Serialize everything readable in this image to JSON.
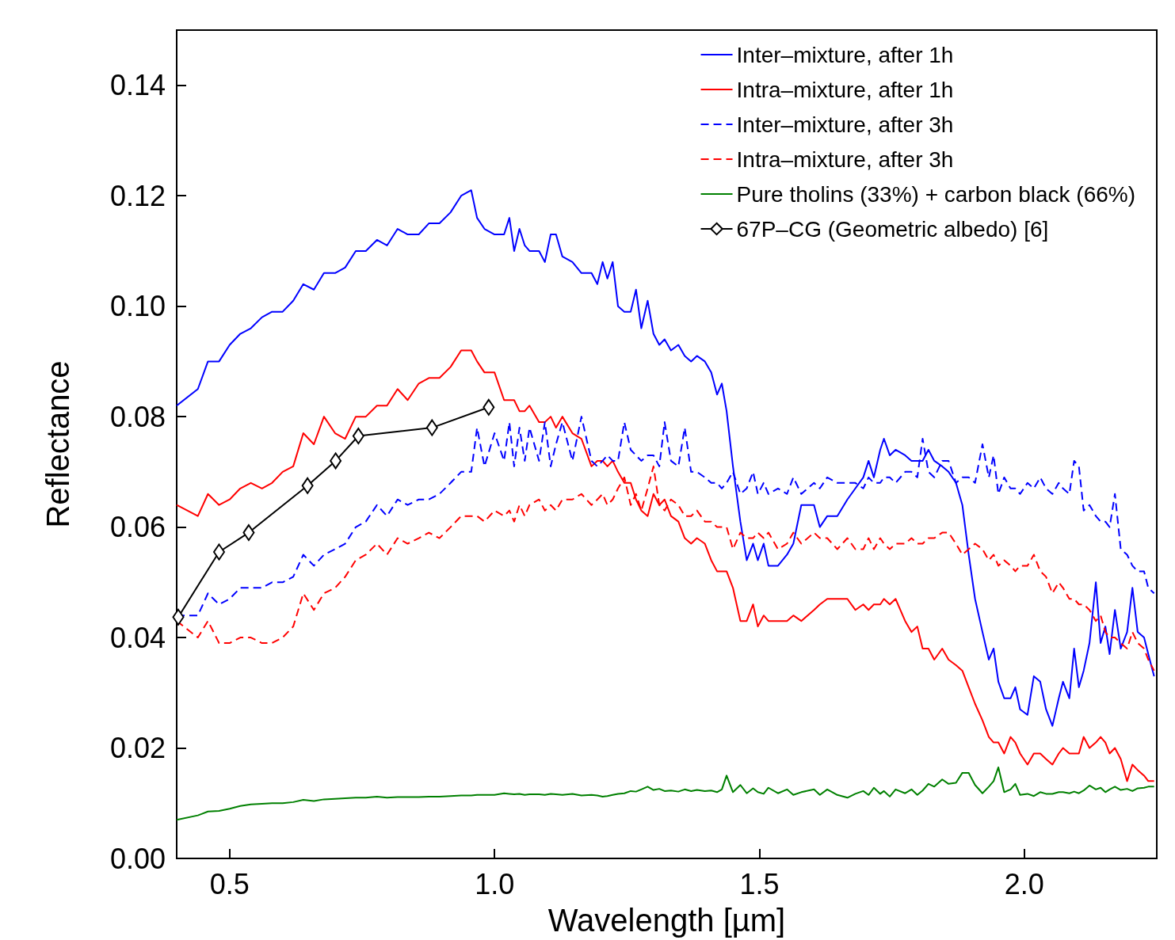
{
  "chart_data": {
    "type": "line",
    "xlabel": "Wavelength [µm]",
    "ylabel": "Reflectance",
    "x": [
      0.4,
      0.44,
      0.459,
      0.48,
      0.5,
      0.52,
      0.54,
      0.561,
      0.58,
      0.6,
      0.62,
      0.639,
      0.659,
      0.678,
      0.699,
      0.718,
      0.738,
      0.757,
      0.778,
      0.797,
      0.817,
      0.836,
      0.857,
      0.876,
      0.896,
      0.917,
      0.937,
      0.956,
      0.967,
      0.981,
      1.0,
      1.018,
      1.028,
      1.037,
      1.047,
      1.057,
      1.066,
      1.084,
      1.095,
      1.106,
      1.116,
      1.128,
      1.147,
      1.164,
      1.183,
      1.194,
      1.204,
      1.213,
      1.223,
      1.233,
      1.245,
      1.257,
      1.267,
      1.277,
      1.289,
      1.3,
      1.311,
      1.321,
      1.333,
      1.347,
      1.359,
      1.371,
      1.382,
      1.397,
      1.409,
      1.42,
      1.429,
      1.438,
      1.45,
      1.464,
      1.476,
      1.488,
      1.497,
      1.508,
      1.517,
      1.535,
      1.552,
      1.564,
      1.579,
      1.603,
      1.614,
      1.628,
      1.647,
      1.666,
      1.681,
      1.696,
      1.706,
      1.716,
      1.728,
      1.735,
      1.746,
      1.757,
      1.775,
      1.787,
      1.798,
      1.808,
      1.819,
      1.83,
      1.845,
      1.857,
      1.871,
      1.883,
      1.895,
      1.907,
      1.921,
      1.933,
      1.942,
      1.951,
      1.962,
      1.974,
      1.983,
      1.992,
      2.006,
      2.018,
      2.03,
      2.041,
      2.053,
      2.065,
      2.073,
      2.085,
      2.094,
      2.103,
      2.112,
      2.123,
      2.135,
      2.144,
      2.153,
      2.161,
      2.171,
      2.182,
      2.194,
      2.204,
      2.214,
      2.226,
      2.234,
      2.245
    ],
    "series": [
      {
        "name": "Inter–mixture, after 1h",
        "color": "#0000ff",
        "line_style": "solid",
        "marker": "none",
        "values": [
          0.082,
          0.085,
          0.09,
          0.09,
          0.093,
          0.095,
          0.096,
          0.098,
          0.099,
          0.099,
          0.101,
          0.104,
          0.103,
          0.106,
          0.106,
          0.107,
          0.11,
          0.11,
          0.112,
          0.111,
          0.114,
          0.113,
          0.113,
          0.115,
          0.115,
          0.117,
          0.12,
          0.121,
          0.116,
          0.114,
          0.113,
          0.113,
          0.116,
          0.11,
          0.114,
          0.111,
          0.11,
          0.11,
          0.108,
          0.113,
          0.113,
          0.109,
          0.108,
          0.106,
          0.106,
          0.104,
          0.108,
          0.105,
          0.108,
          0.1,
          0.099,
          0.099,
          0.103,
          0.096,
          0.101,
          0.095,
          0.093,
          0.094,
          0.092,
          0.093,
          0.091,
          0.09,
          0.091,
          0.09,
          0.088,
          0.084,
          0.086,
          0.081,
          0.071,
          0.061,
          0.054,
          0.057,
          0.054,
          0.057,
          0.053,
          0.053,
          0.055,
          0.057,
          0.064,
          0.064,
          0.06,
          0.062,
          0.062,
          0.065,
          0.067,
          0.069,
          0.072,
          0.069,
          0.074,
          0.076,
          0.073,
          0.074,
          0.073,
          0.072,
          0.072,
          0.072,
          0.074,
          0.072,
          0.071,
          0.07,
          0.068,
          0.064,
          0.055,
          0.047,
          0.041,
          0.036,
          0.038,
          0.032,
          0.029,
          0.029,
          0.031,
          0.027,
          0.026,
          0.033,
          0.032,
          0.027,
          0.024,
          0.029,
          0.032,
          0.029,
          0.038,
          0.031,
          0.034,
          0.039,
          0.05,
          0.039,
          0.042,
          0.037,
          0.045,
          0.038,
          0.041,
          0.049,
          0.041,
          0.04,
          0.037,
          0.033
        ]
      },
      {
        "name": "Intra–mixture, after 1h",
        "color": "#ff0000",
        "line_style": "solid",
        "marker": "none",
        "values": [
          0.064,
          0.062,
          0.066,
          0.064,
          0.065,
          0.067,
          0.068,
          0.067,
          0.068,
          0.07,
          0.071,
          0.077,
          0.075,
          0.08,
          0.077,
          0.076,
          0.08,
          0.08,
          0.082,
          0.082,
          0.085,
          0.083,
          0.086,
          0.087,
          0.087,
          0.089,
          0.092,
          0.092,
          0.09,
          0.088,
          0.088,
          0.083,
          0.083,
          0.083,
          0.081,
          0.081,
          0.082,
          0.079,
          0.079,
          0.08,
          0.078,
          0.08,
          0.077,
          0.076,
          0.071,
          0.072,
          0.072,
          0.071,
          0.072,
          0.07,
          0.068,
          0.068,
          0.065,
          0.063,
          0.062,
          0.066,
          0.064,
          0.065,
          0.062,
          0.061,
          0.058,
          0.057,
          0.058,
          0.057,
          0.054,
          0.052,
          0.052,
          0.052,
          0.049,
          0.043,
          0.043,
          0.046,
          0.042,
          0.044,
          0.043,
          0.043,
          0.043,
          0.044,
          0.043,
          0.045,
          0.046,
          0.047,
          0.047,
          0.047,
          0.045,
          0.046,
          0.045,
          0.046,
          0.046,
          0.047,
          0.046,
          0.047,
          0.043,
          0.041,
          0.042,
          0.038,
          0.038,
          0.036,
          0.038,
          0.036,
          0.035,
          0.034,
          0.031,
          0.028,
          0.025,
          0.022,
          0.021,
          0.021,
          0.019,
          0.022,
          0.021,
          0.019,
          0.017,
          0.019,
          0.019,
          0.018,
          0.017,
          0.019,
          0.02,
          0.019,
          0.019,
          0.019,
          0.022,
          0.02,
          0.021,
          0.022,
          0.021,
          0.019,
          0.02,
          0.018,
          0.014,
          0.017,
          0.016,
          0.015,
          0.014,
          0.014
        ]
      },
      {
        "name": "Inter–mixture, after 3h",
        "color": "#0000ff",
        "line_style": "dashed",
        "marker": "none",
        "values": [
          0.044,
          0.044,
          0.048,
          0.046,
          0.047,
          0.049,
          0.049,
          0.049,
          0.05,
          0.05,
          0.051,
          0.055,
          0.053,
          0.055,
          0.056,
          0.057,
          0.06,
          0.061,
          0.064,
          0.062,
          0.065,
          0.064,
          0.065,
          0.065,
          0.066,
          0.068,
          0.07,
          0.07,
          0.078,
          0.071,
          0.077,
          0.072,
          0.079,
          0.071,
          0.078,
          0.072,
          0.078,
          0.072,
          0.079,
          0.071,
          0.075,
          0.079,
          0.072,
          0.08,
          0.072,
          0.071,
          0.072,
          0.073,
          0.072,
          0.072,
          0.079,
          0.074,
          0.073,
          0.072,
          0.073,
          0.073,
          0.071,
          0.079,
          0.072,
          0.071,
          0.078,
          0.07,
          0.07,
          0.069,
          0.068,
          0.068,
          0.067,
          0.068,
          0.07,
          0.066,
          0.067,
          0.07,
          0.066,
          0.068,
          0.066,
          0.067,
          0.066,
          0.069,
          0.066,
          0.068,
          0.067,
          0.069,
          0.068,
          0.068,
          0.068,
          0.067,
          0.069,
          0.068,
          0.068,
          0.069,
          0.069,
          0.068,
          0.07,
          0.07,
          0.069,
          0.076,
          0.07,
          0.069,
          0.072,
          0.072,
          0.068,
          0.069,
          0.069,
          0.068,
          0.075,
          0.069,
          0.073,
          0.066,
          0.069,
          0.067,
          0.067,
          0.066,
          0.068,
          0.067,
          0.069,
          0.067,
          0.066,
          0.068,
          0.067,
          0.066,
          0.072,
          0.071,
          0.063,
          0.064,
          0.062,
          0.061,
          0.061,
          0.06,
          0.066,
          0.056,
          0.055,
          0.053,
          0.052,
          0.052,
          0.049,
          0.048
        ]
      },
      {
        "name": "Intra–mixture, after 3h",
        "color": "#ff0000",
        "line_style": "dashed",
        "marker": "none",
        "values": [
          0.043,
          0.04,
          0.043,
          0.039,
          0.039,
          0.04,
          0.04,
          0.039,
          0.039,
          0.04,
          0.042,
          0.048,
          0.045,
          0.048,
          0.049,
          0.051,
          0.054,
          0.055,
          0.057,
          0.055,
          0.058,
          0.057,
          0.058,
          0.059,
          0.058,
          0.06,
          0.062,
          0.062,
          0.062,
          0.061,
          0.063,
          0.062,
          0.063,
          0.061,
          0.064,
          0.062,
          0.064,
          0.065,
          0.063,
          0.064,
          0.063,
          0.065,
          0.065,
          0.066,
          0.064,
          0.065,
          0.066,
          0.064,
          0.065,
          0.067,
          0.069,
          0.064,
          0.066,
          0.063,
          0.067,
          0.071,
          0.064,
          0.063,
          0.065,
          0.064,
          0.062,
          0.062,
          0.063,
          0.061,
          0.061,
          0.06,
          0.06,
          0.06,
          0.056,
          0.059,
          0.058,
          0.058,
          0.059,
          0.058,
          0.059,
          0.056,
          0.057,
          0.059,
          0.057,
          0.059,
          0.058,
          0.058,
          0.056,
          0.058,
          0.056,
          0.056,
          0.058,
          0.056,
          0.058,
          0.057,
          0.056,
          0.057,
          0.057,
          0.058,
          0.057,
          0.057,
          0.058,
          0.058,
          0.059,
          0.059,
          0.057,
          0.055,
          0.056,
          0.057,
          0.056,
          0.054,
          0.055,
          0.053,
          0.054,
          0.053,
          0.052,
          0.053,
          0.053,
          0.055,
          0.052,
          0.051,
          0.048,
          0.05,
          0.049,
          0.047,
          0.047,
          0.046,
          0.046,
          0.045,
          0.043,
          0.044,
          0.041,
          0.04,
          0.04,
          0.039,
          0.038,
          0.041,
          0.039,
          0.038,
          0.036,
          0.034
        ]
      },
      {
        "name": "Pure tholins (33%) + carbon black (66%)",
        "color": "#008000",
        "line_style": "solid",
        "marker": "none",
        "values": [
          0.007,
          0.0078,
          0.0085,
          0.0086,
          0.009,
          0.0095,
          0.0098,
          0.0099,
          0.01,
          0.01,
          0.0102,
          0.0106,
          0.0104,
          0.0107,
          0.0108,
          0.0109,
          0.011,
          0.011,
          0.0112,
          0.011,
          0.0111,
          0.0111,
          0.0111,
          0.0112,
          0.0112,
          0.0113,
          0.0114,
          0.0114,
          0.0115,
          0.0115,
          0.0115,
          0.0118,
          0.0117,
          0.0116,
          0.0117,
          0.0115,
          0.0116,
          0.0116,
          0.0115,
          0.0117,
          0.0116,
          0.0115,
          0.0117,
          0.0114,
          0.0115,
          0.0114,
          0.0112,
          0.0113,
          0.0115,
          0.0117,
          0.0118,
          0.0122,
          0.0121,
          0.0125,
          0.013,
          0.0124,
          0.0126,
          0.0122,
          0.0123,
          0.0121,
          0.0125,
          0.0122,
          0.0124,
          0.0122,
          0.0123,
          0.012,
          0.0125,
          0.015,
          0.012,
          0.0133,
          0.0118,
          0.0127,
          0.012,
          0.0117,
          0.0128,
          0.0118,
          0.0125,
          0.0115,
          0.012,
          0.0125,
          0.0115,
          0.0125,
          0.0115,
          0.011,
          0.0117,
          0.0122,
          0.0115,
          0.0128,
          0.0117,
          0.0122,
          0.0112,
          0.0125,
          0.0118,
          0.0125,
          0.0115,
          0.0123,
          0.0135,
          0.013,
          0.0143,
          0.0135,
          0.0137,
          0.0155,
          0.0155,
          0.0133,
          0.0118,
          0.013,
          0.014,
          0.0165,
          0.012,
          0.0125,
          0.0135,
          0.0115,
          0.0117,
          0.0113,
          0.012,
          0.0117,
          0.0117,
          0.012,
          0.012,
          0.0118,
          0.0121,
          0.0118,
          0.0123,
          0.0132,
          0.0125,
          0.0128,
          0.012,
          0.0125,
          0.013,
          0.0124,
          0.0126,
          0.0122,
          0.0127,
          0.0128,
          0.013,
          0.013
        ]
      },
      {
        "name": "67P–CG (Geometric albedo) [6]",
        "color": "#000000",
        "line_style": "solid",
        "marker": "diamond",
        "x": [
          0.403,
          0.48,
          0.536,
          0.647,
          0.7,
          0.743,
          0.882,
          0.989
        ],
        "values": [
          0.0437,
          0.0555,
          0.059,
          0.0675,
          0.072,
          0.0765,
          0.078,
          0.0817
        ]
      }
    ],
    "xlim": [
      0.4,
      2.25
    ],
    "ylim": [
      0,
      0.15
    ],
    "xticks": [
      0.5,
      {
        "value": 1,
        "label": "1.0"
      },
      1.5,
      {
        "value": 2,
        "label": "2.0"
      }
    ],
    "yticks": [
      {
        "value": 0,
        "label": "0.00"
      },
      {
        "value": 0.02,
        "label": "0.02"
      },
      {
        "value": 0.04,
        "label": "0.04"
      },
      {
        "value": 0.06,
        "label": "0.06"
      },
      {
        "value": 0.08,
        "label": "0.08"
      },
      {
        "value": 0.1,
        "label": "0.10"
      },
      {
        "value": 0.12,
        "label": "0.12"
      },
      {
        "value": 0.14,
        "label": "0.14"
      }
    ],
    "grid": false,
    "legend": "top right"
  }
}
